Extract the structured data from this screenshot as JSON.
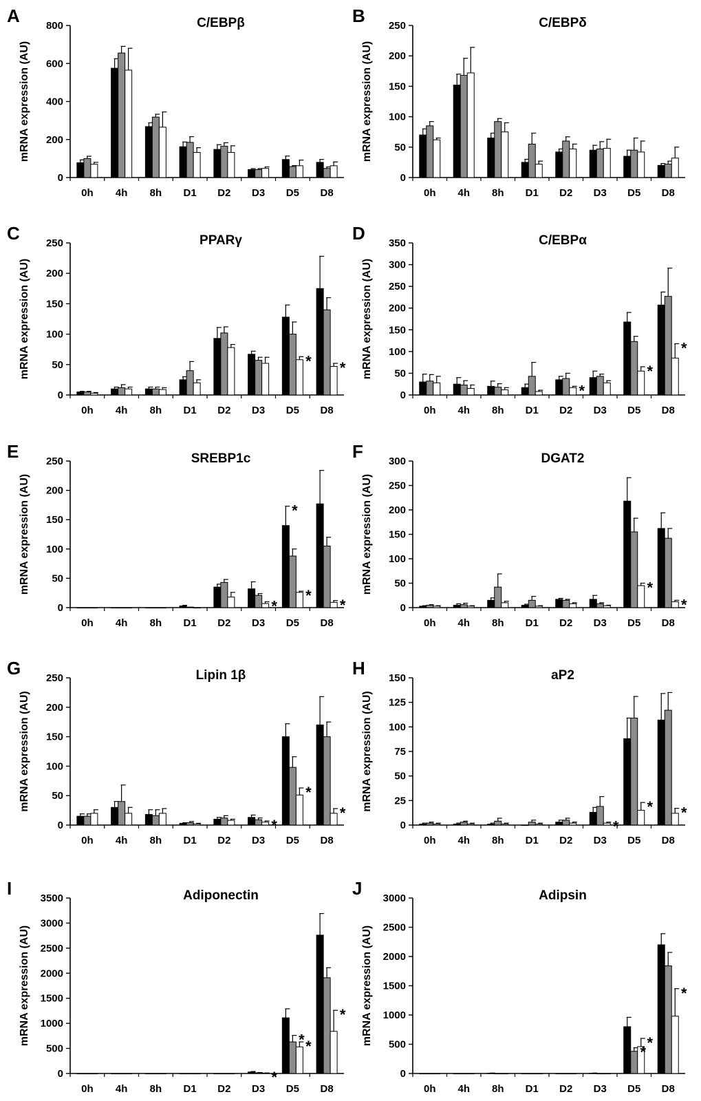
{
  "colors": {
    "series_1": "#000000",
    "series_2": "#8c8c8c",
    "series_3": "#ffffff",
    "outline": "#000000"
  },
  "chart_data": [
    {
      "panel": "A",
      "title": "C/EBPβ",
      "type": "bar",
      "ylabel": "mRNA expression (AU)",
      "categories": [
        "0h",
        "4h",
        "8h",
        "D1",
        "D2",
        "D3",
        "D5",
        "D8"
      ],
      "ylim": [
        0,
        800
      ],
      "yticks": [
        0,
        200,
        400,
        600,
        800
      ],
      "series": [
        {
          "values": [
            78,
            575,
            268,
            162,
            148,
            42,
            95,
            80
          ],
          "errors": [
            15,
            50,
            20,
            25,
            25,
            5,
            18,
            15
          ]
        },
        {
          "values": [
            100,
            655,
            318,
            185,
            165,
            42,
            58,
            48
          ],
          "errors": [
            12,
            35,
            15,
            30,
            18,
            5,
            5,
            8
          ]
        },
        {
          "values": [
            70,
            565,
            265,
            132,
            132,
            48,
            62,
            62
          ],
          "errors": [
            10,
            115,
            80,
            25,
            35,
            8,
            30,
            20
          ]
        }
      ],
      "significance": []
    },
    {
      "panel": "B",
      "title": "C/EBPδ",
      "type": "bar",
      "ylabel": "mRNA expression (AU)",
      "categories": [
        "0h",
        "4h",
        "8h",
        "D1",
        "D2",
        "D3",
        "D5",
        "D8"
      ],
      "ylim": [
        0,
        250
      ],
      "yticks": [
        0,
        50,
        100,
        150,
        200,
        250
      ],
      "series": [
        {
          "values": [
            70,
            152,
            65,
            25,
            42,
            45,
            35,
            20
          ],
          "errors": [
            10,
            18,
            8,
            5,
            5,
            8,
            10,
            3
          ]
        },
        {
          "values": [
            85,
            168,
            92,
            55,
            60,
            47,
            45,
            22
          ],
          "errors": [
            7,
            28,
            5,
            18,
            7,
            12,
            20,
            5
          ]
        },
        {
          "values": [
            62,
            172,
            75,
            22,
            47,
            48,
            42,
            32
          ],
          "errors": [
            3,
            42,
            15,
            5,
            8,
            15,
            18,
            18
          ]
        }
      ],
      "significance": []
    },
    {
      "panel": "C",
      "title": "PPARγ",
      "type": "bar",
      "ylabel": "mRNA expression (AU)",
      "categories": [
        "0h",
        "4h",
        "8h",
        "D1",
        "D2",
        "D3",
        "D5",
        "D8"
      ],
      "ylim": [
        0,
        250
      ],
      "yticks": [
        0,
        50,
        100,
        150,
        200,
        250
      ],
      "series": [
        {
          "values": [
            5,
            10,
            10,
            25,
            93,
            67,
            128,
            175
          ],
          "errors": [
            1,
            3,
            3,
            5,
            18,
            5,
            20,
            53
          ]
        },
        {
          "values": [
            5,
            12,
            10,
            40,
            102,
            57,
            100,
            140
          ],
          "errors": [
            1,
            5,
            3,
            15,
            10,
            5,
            20,
            20
          ]
        },
        {
          "values": [
            3,
            10,
            9,
            20,
            78,
            52,
            58,
            47
          ],
          "errors": [
            1,
            3,
            3,
            5,
            5,
            10,
            5,
            5
          ]
        }
      ],
      "significance": [
        {
          "category": "D5",
          "series": 2,
          "label": "*"
        },
        {
          "category": "D8",
          "series": 2,
          "label": "*"
        }
      ]
    },
    {
      "panel": "D",
      "title": "C/EBPα",
      "type": "bar",
      "ylabel": "mRNA expression (AU)",
      "categories": [
        "0h",
        "4h",
        "8h",
        "D1",
        "D2",
        "D3",
        "D5",
        "D8"
      ],
      "ylim": [
        0,
        350
      ],
      "yticks": [
        0,
        50,
        100,
        150,
        200,
        250,
        300,
        350
      ],
      "series": [
        {
          "values": [
            30,
            25,
            20,
            17,
            35,
            40,
            168,
            207
          ],
          "errors": [
            18,
            15,
            12,
            8,
            8,
            15,
            22,
            30
          ]
        },
        {
          "values": [
            32,
            23,
            18,
            43,
            38,
            43,
            123,
            227
          ],
          "errors": [
            15,
            10,
            8,
            32,
            12,
            5,
            12,
            65
          ]
        },
        {
          "values": [
            28,
            15,
            12,
            8,
            17,
            28,
            55,
            85
          ],
          "errors": [
            15,
            8,
            5,
            3,
            3,
            5,
            10,
            33
          ]
        }
      ],
      "significance": [
        {
          "category": "D2",
          "series": 2,
          "label": "*"
        },
        {
          "category": "D5",
          "series": 2,
          "label": "*"
        },
        {
          "category": "D8",
          "series": 2,
          "label": "*"
        }
      ]
    },
    {
      "panel": "E",
      "title": "SREBP1c",
      "type": "bar",
      "ylabel": "mRNA expression (AU)",
      "categories": [
        "0h",
        "4h",
        "8h",
        "D1",
        "D2",
        "D3",
        "D5",
        "D8"
      ],
      "ylim": [
        0,
        250
      ],
      "yticks": [
        0,
        50,
        100,
        150,
        200,
        250
      ],
      "series": [
        {
          "values": [
            0,
            0,
            0,
            3,
            35,
            32,
            140,
            177
          ],
          "errors": [
            0,
            0,
            0,
            1,
            5,
            12,
            33,
            57
          ]
        },
        {
          "values": [
            0,
            0,
            0,
            1,
            43,
            21,
            88,
            105
          ],
          "errors": [
            0,
            0,
            0,
            0,
            5,
            3,
            12,
            15
          ]
        },
        {
          "values": [
            0,
            0,
            0,
            0,
            18,
            7,
            26,
            9
          ],
          "errors": [
            0,
            0,
            0,
            0,
            8,
            3,
            2,
            3
          ]
        }
      ],
      "significance": [
        {
          "category": "D3",
          "series": 2,
          "label": "*"
        },
        {
          "category": "D5",
          "series": 0,
          "label": "*"
        },
        {
          "category": "D5",
          "series": 2,
          "label": "*"
        },
        {
          "category": "D8",
          "series": 2,
          "label": "*"
        }
      ]
    },
    {
      "panel": "F",
      "title": "DGAT2",
      "type": "bar",
      "ylabel": "mRNA expression (AU)",
      "categories": [
        "0h",
        "4h",
        "8h",
        "D1",
        "D2",
        "D3",
        "D5",
        "D8"
      ],
      "ylim": [
        0,
        300
      ],
      "yticks": [
        0,
        50,
        100,
        150,
        200,
        250,
        300
      ],
      "series": [
        {
          "values": [
            3,
            5,
            15,
            5,
            17,
            17,
            218,
            162
          ],
          "errors": [
            1,
            3,
            5,
            2,
            2,
            8,
            48,
            32
          ]
        },
        {
          "values": [
            5,
            6,
            42,
            15,
            15,
            8,
            155,
            142
          ],
          "errors": [
            1,
            3,
            27,
            8,
            2,
            2,
            28,
            20
          ]
        },
        {
          "values": [
            3,
            3,
            10,
            3,
            8,
            4,
            45,
            12
          ],
          "errors": [
            1,
            1,
            3,
            1,
            2,
            1,
            5,
            3
          ]
        }
      ],
      "significance": [
        {
          "category": "D5",
          "series": 2,
          "label": "*"
        },
        {
          "category": "D8",
          "series": 2,
          "label": "*"
        }
      ]
    },
    {
      "panel": "G",
      "title": "Lipin 1β",
      "type": "bar",
      "ylabel": "mRNA expression (AU)",
      "categories": [
        "0h",
        "4h",
        "8h",
        "D1",
        "D2",
        "D3",
        "D5",
        "D8"
      ],
      "ylim": [
        0,
        250
      ],
      "yticks": [
        0,
        50,
        100,
        150,
        200,
        250
      ],
      "series": [
        {
          "values": [
            15,
            30,
            18,
            3,
            10,
            13,
            150,
            170
          ],
          "errors": [
            4,
            10,
            8,
            1,
            3,
            4,
            22,
            48
          ]
        },
        {
          "values": [
            15,
            40,
            16,
            4,
            12,
            9,
            98,
            150
          ],
          "errors": [
            4,
            28,
            10,
            2,
            4,
            3,
            18,
            25
          ]
        },
        {
          "values": [
            20,
            20,
            20,
            2,
            8,
            5,
            51,
            20
          ],
          "errors": [
            6,
            10,
            8,
            1,
            2,
            2,
            12,
            8
          ]
        }
      ],
      "significance": [
        {
          "category": "D3",
          "series": 2,
          "label": "*"
        },
        {
          "category": "D5",
          "series": 2,
          "label": "*"
        },
        {
          "category": "D8",
          "series": 2,
          "label": "*"
        }
      ]
    },
    {
      "panel": "H",
      "title": "aP2",
      "type": "bar",
      "ylabel": "mRNA expression (AU)",
      "categories": [
        "0h",
        "4h",
        "8h",
        "D1",
        "D2",
        "D3",
        "D5",
        "D8"
      ],
      "ylim": [
        0,
        150
      ],
      "yticks": [
        0,
        25,
        50,
        75,
        100,
        125,
        150
      ],
      "series": [
        {
          "values": [
            1,
            1,
            1,
            0,
            3,
            13,
            88,
            107
          ],
          "errors": [
            1,
            1,
            1,
            0,
            2,
            5,
            21,
            27
          ]
        },
        {
          "values": [
            2,
            3,
            4,
            3,
            5,
            19,
            109,
            117
          ],
          "errors": [
            1,
            1,
            3,
            2,
            2,
            10,
            22,
            18
          ]
        },
        {
          "values": [
            1,
            1,
            1,
            1,
            2,
            2,
            15,
            12
          ],
          "errors": [
            1,
            1,
            1,
            1,
            1,
            1,
            8,
            5
          ]
        }
      ],
      "significance": [
        {
          "category": "D3",
          "series": 2,
          "label": "*"
        },
        {
          "category": "D5",
          "series": 2,
          "label": "*"
        },
        {
          "category": "D8",
          "series": 2,
          "label": "*"
        }
      ]
    },
    {
      "panel": "I",
      "title": "Adiponectin",
      "type": "bar",
      "ylabel": "mRNA expression (AU)",
      "categories": [
        "0h",
        "4h",
        "8h",
        "D1",
        "D2",
        "D3",
        "D5",
        "D8"
      ],
      "ylim": [
        0,
        3500
      ],
      "yticks": [
        0,
        500,
        1000,
        1500,
        2000,
        2500,
        3000,
        3500
      ],
      "series": [
        {
          "values": [
            0,
            0,
            0,
            0,
            0,
            30,
            1110,
            2760
          ],
          "errors": [
            0,
            0,
            0,
            0,
            0,
            10,
            180,
            430
          ]
        },
        {
          "values": [
            0,
            0,
            0,
            0,
            0,
            15,
            630,
            1910
          ],
          "errors": [
            0,
            0,
            0,
            0,
            0,
            5,
            130,
            200
          ]
        },
        {
          "values": [
            0,
            0,
            0,
            0,
            0,
            8,
            530,
            840
          ],
          "errors": [
            0,
            0,
            0,
            0,
            0,
            3,
            100,
            420
          ]
        }
      ],
      "significance": [
        {
          "category": "D3",
          "series": 2,
          "label": "*"
        },
        {
          "category": "D5",
          "series": 1,
          "label": "*"
        },
        {
          "category": "D5",
          "series": 2,
          "label": "*"
        },
        {
          "category": "D8",
          "series": 2,
          "label": "*"
        }
      ]
    },
    {
      "panel": "J",
      "title": "Adipsin",
      "type": "bar",
      "ylabel": "mRNA expression (AU)",
      "categories": [
        "0h",
        "4h",
        "8h",
        "D1",
        "D2",
        "D3",
        "D5",
        "D8"
      ],
      "ylim": [
        0,
        3000
      ],
      "yticks": [
        0,
        500,
        1000,
        1500,
        2000,
        2500,
        3000
      ],
      "series": [
        {
          "values": [
            0,
            0,
            5,
            0,
            0,
            5,
            800,
            2200
          ],
          "errors": [
            0,
            0,
            3,
            0,
            0,
            3,
            160,
            190
          ]
        },
        {
          "values": [
            0,
            0,
            0,
            0,
            0,
            0,
            380,
            1840
          ],
          "errors": [
            0,
            0,
            0,
            0,
            0,
            0,
            60,
            230
          ]
        },
        {
          "values": [
            0,
            0,
            0,
            0,
            0,
            0,
            460,
            980
          ],
          "errors": [
            0,
            0,
            0,
            0,
            0,
            0,
            140,
            470
          ]
        }
      ],
      "significance": [
        {
          "category": "D5",
          "series": 1,
          "label": "*"
        },
        {
          "category": "D5",
          "series": 2,
          "label": "*"
        },
        {
          "category": "D8",
          "series": 2,
          "label": "*"
        }
      ]
    }
  ]
}
